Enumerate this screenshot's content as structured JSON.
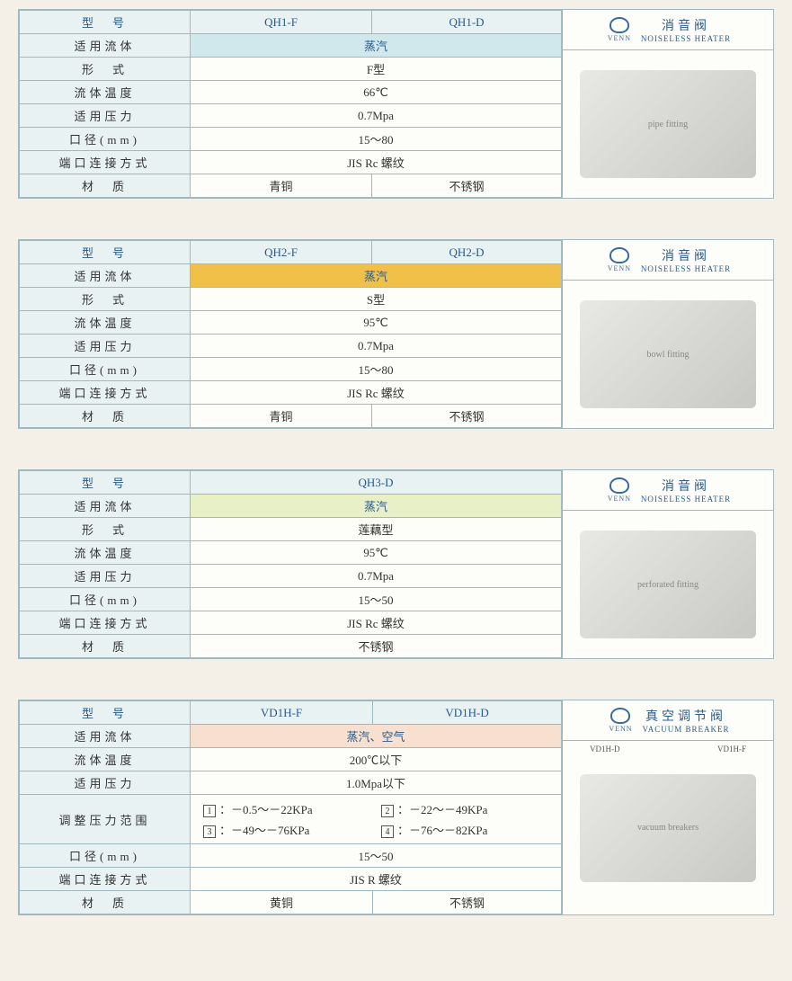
{
  "labels": {
    "model": "型　号",
    "fluid": "适用流体",
    "type": "形　式",
    "temp": "流体温度",
    "pressure": "适用压力",
    "diameter": "口径(mm)",
    "connection": "端口连接方式",
    "material": "材　质",
    "pressure_range": "调整压力范围"
  },
  "logo_text": "VENN",
  "blocks": [
    {
      "models": [
        "QH1-F",
        "QH1-D"
      ],
      "fluid": "蒸汽",
      "fluid_bg": "#d0e8ec",
      "type": "F型",
      "temp": "66℃",
      "pressure": "0.7Mpa",
      "diameter": "15～80",
      "connection": "JIS Rc 螺纹",
      "materials": [
        "青铜",
        "不锈钢"
      ],
      "title_cn": "消音阀",
      "title_en": "NOISELESS HEATER",
      "img_alt": "pipe fitting"
    },
    {
      "models": [
        "QH2-F",
        "QH2-D"
      ],
      "fluid": "蒸汽",
      "fluid_bg": "#f0c048",
      "type": "S型",
      "temp": "95℃",
      "pressure": "0.7Mpa",
      "diameter": "15～80",
      "connection": "JIS Rc 螺纹",
      "materials": [
        "青铜",
        "不锈钢"
      ],
      "title_cn": "消音阀",
      "title_en": "NOISELESS HEATER",
      "img_alt": "bowl fitting"
    },
    {
      "models": [
        "QH3-D"
      ],
      "fluid": "蒸汽",
      "fluid_bg": "#e8f0c8",
      "type": "莲藕型",
      "temp": "95℃",
      "pressure": "0.7Mpa",
      "diameter": "15～50",
      "connection": "JIS Rc 螺纹",
      "materials": [
        "不锈钢"
      ],
      "title_cn": "消音阀",
      "title_en": "NOISELESS HEATER",
      "img_alt": "perforated fitting"
    },
    {
      "models": [
        "VD1H-F",
        "VD1H-D"
      ],
      "fluid": "蒸汽、空气",
      "fluid_bg": "#f8e0d0",
      "temp": "200℃以下",
      "pressure": "1.0Mpa以下",
      "pressure_ranges": [
        {
          "n": "1",
          "v": "－0.5～－22KPa"
        },
        {
          "n": "2",
          "v": "－22～－49KPa"
        },
        {
          "n": "3",
          "v": "－49～－76KPa"
        },
        {
          "n": "4",
          "v": "－76～－82KPa"
        }
      ],
      "diameter": "15～50",
      "connection": "JIS R 螺纹",
      "materials": [
        "黄铜",
        "不锈钢"
      ],
      "title_cn": "真空调节阀",
      "title_en": "VACUUM BREAKER",
      "img_alt": "vacuum breakers",
      "sub_labels": [
        "VD1H-D",
        "VD1H-F"
      ]
    }
  ]
}
